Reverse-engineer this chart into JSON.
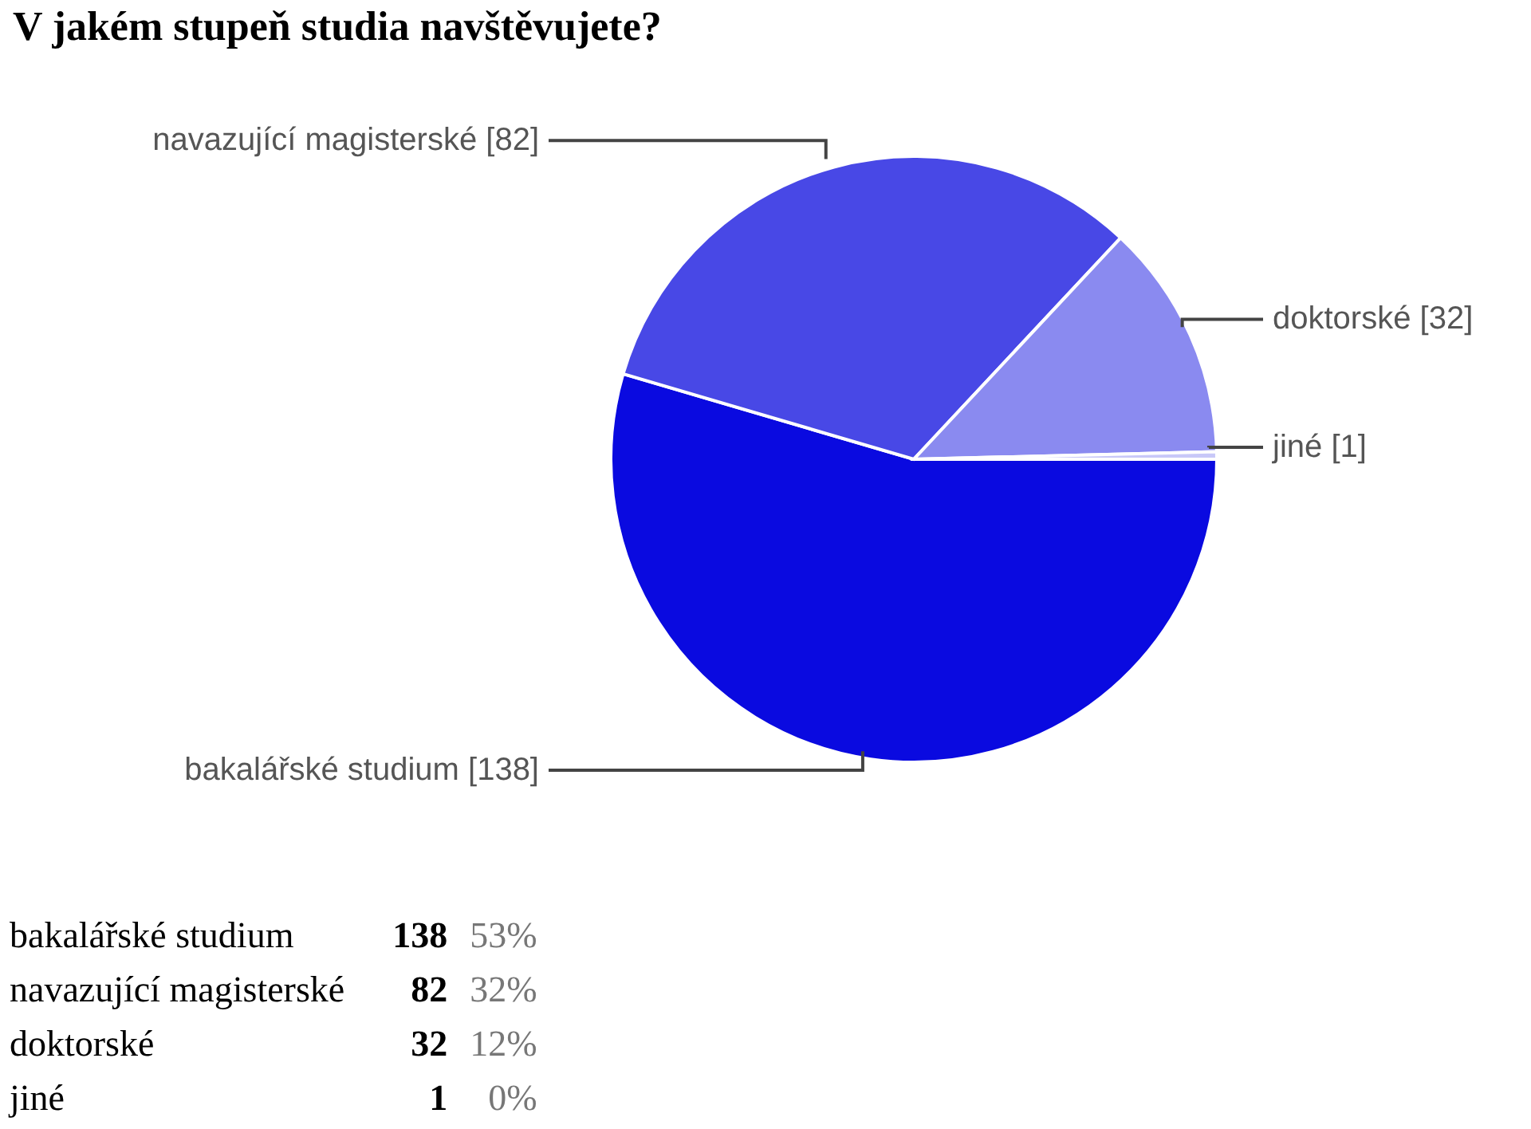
{
  "chart_data": [
    {
      "type": "pie",
      "title": "V jakém stupeň studia navštěvujete?",
      "categories": [
        "bakalářské studium",
        "navazující magisterské",
        "doktorské",
        "jiné"
      ],
      "values": [
        138,
        82,
        32,
        1
      ],
      "colors": [
        "#0a0ae0",
        "#4848e6",
        "#8a8af0",
        "#c8c8f8"
      ],
      "value_labels": [
        "[138]",
        "[82]",
        "[32]",
        "[1]"
      ]
    },
    {
      "type": "other",
      "annotations": [
        "bakalářské studium",
        "138",
        "53%",
        "navazující magisterské",
        "82",
        "32%",
        "doktorské",
        "32",
        "12%",
        "jiné",
        "1",
        "0%"
      ]
    }
  ]
}
